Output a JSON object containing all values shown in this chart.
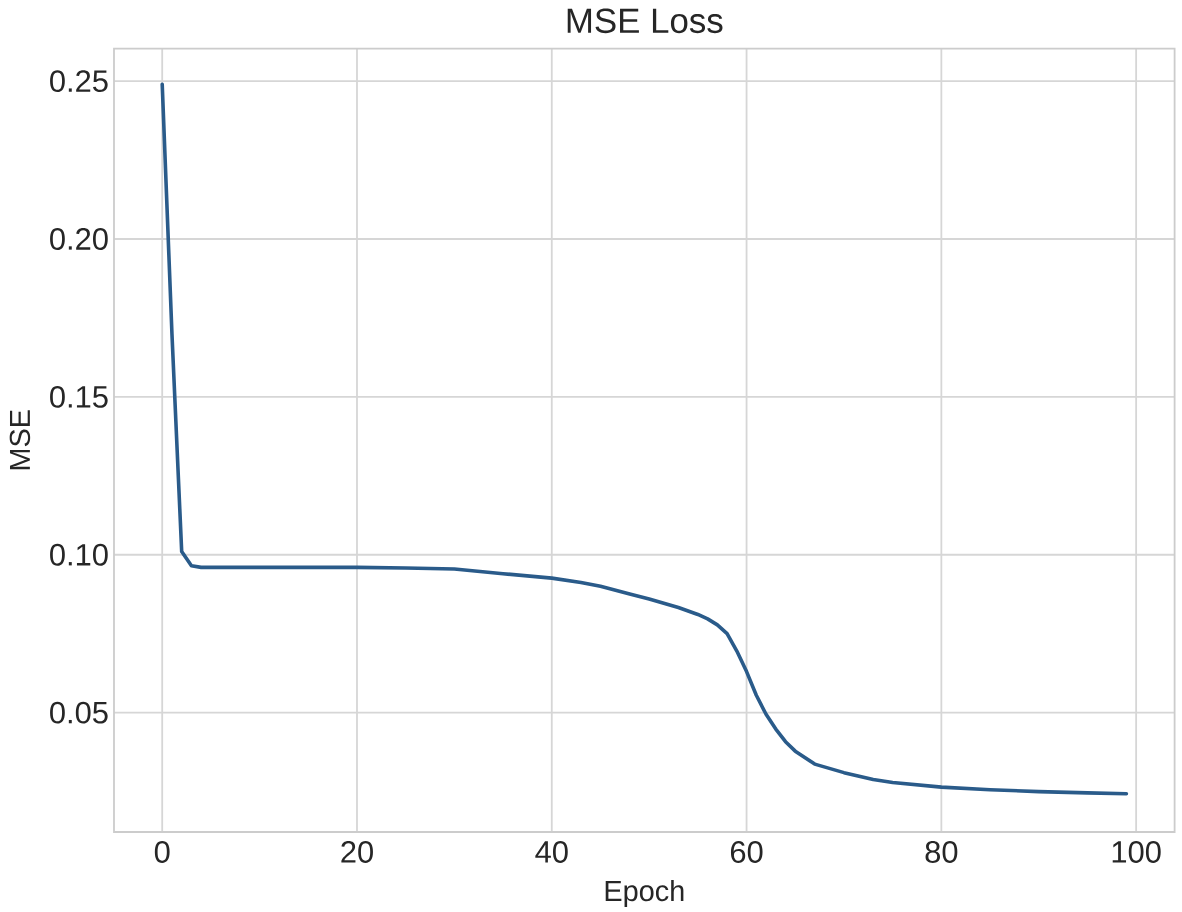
{
  "chart_data": {
    "type": "line",
    "title": "MSE Loss",
    "xlabel": "Epoch",
    "ylabel": "MSE",
    "x": [
      0,
      1,
      2,
      3,
      4,
      10,
      20,
      25,
      30,
      35,
      40,
      43,
      45,
      48,
      50,
      53,
      55,
      56,
      57,
      58,
      59,
      60,
      61,
      62,
      63,
      64,
      65,
      67,
      70,
      73,
      75,
      80,
      85,
      90,
      95,
      99
    ],
    "series": [
      {
        "color": "#2a5b8a",
        "values": [
          0.249,
          0.17,
          0.101,
          0.0965,
          0.096,
          0.096,
          0.096,
          0.0958,
          0.0955,
          0.094,
          0.0926,
          0.0912,
          0.09,
          0.0876,
          0.086,
          0.0833,
          0.0811,
          0.0797,
          0.0778,
          0.075,
          0.0695,
          0.063,
          0.0555,
          0.0495,
          0.0448,
          0.0408,
          0.0378,
          0.0337,
          0.031,
          0.0288,
          0.0279,
          0.0264,
          0.0256,
          0.025,
          0.0246,
          0.0243
        ]
      }
    ],
    "xlim": [
      -4.95,
      103.95
    ],
    "ylim": [
      0.0122,
      0.2603
    ],
    "xticks": [
      0,
      20,
      40,
      60,
      80,
      100
    ],
    "yticks": [
      0.05,
      {
        "value": 0.1,
        "label": "0.10"
      },
      0.15,
      {
        "value": 0.2,
        "label": "0.20"
      },
      0.25
    ],
    "grid": true,
    "marker": "none",
    "line_style": "solid"
  }
}
